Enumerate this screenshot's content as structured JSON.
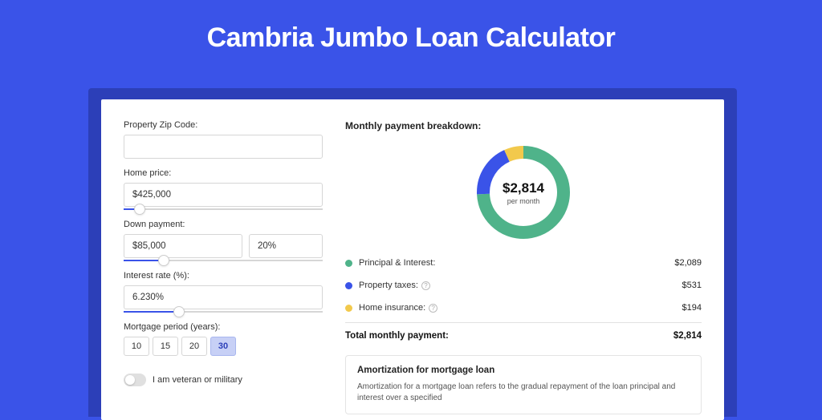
{
  "colors": {
    "page_bg": "#3a53e8",
    "shadow": "#2c3fb8",
    "card_bg": "#ffffff",
    "border": "#d6d6d6",
    "text_primary": "#222222",
    "text_secondary": "#555555",
    "slider_fill": "#3a53e8",
    "period_selected_bg": "#c7d0f6"
  },
  "hero": {
    "title": "Cambria Jumbo Loan Calculator"
  },
  "form": {
    "zip": {
      "label": "Property Zip Code:",
      "value": ""
    },
    "home_price": {
      "label": "Home price:",
      "value": "$425,000",
      "slider_pct": 8
    },
    "down_payment": {
      "label": "Down payment:",
      "amount": "$85,000",
      "percent": "20%",
      "slider_pct": 20
    },
    "interest": {
      "label": "Interest rate (%):",
      "value": "6.230%",
      "slider_pct": 28
    },
    "period": {
      "label": "Mortgage period (years):",
      "options": [
        "10",
        "15",
        "20",
        "30"
      ],
      "selected": "30"
    },
    "veteran": {
      "label": "I am veteran or military",
      "on": false
    }
  },
  "breakdown": {
    "title": "Monthly payment breakdown:",
    "donut": {
      "amount": "$2,814",
      "sub": "per month",
      "segments": [
        {
          "label": "Principal & Interest",
          "value": 2089,
          "color": "#4fb38a",
          "percent": 74.2
        },
        {
          "label": "Property taxes",
          "value": 531,
          "color": "#3a53e8",
          "percent": 18.9
        },
        {
          "label": "Home insurance",
          "value": 194,
          "color": "#f2c94c",
          "percent": 6.9
        }
      ],
      "stroke_width": 16,
      "radius": 50
    },
    "rows": [
      {
        "swatch": "#4fb38a",
        "label": "Principal & Interest:",
        "value": "$2,089",
        "has_info": false
      },
      {
        "swatch": "#3a53e8",
        "label": "Property taxes:",
        "value": "$531",
        "has_info": true
      },
      {
        "swatch": "#f2c94c",
        "label": "Home insurance:",
        "value": "$194",
        "has_info": true
      }
    ],
    "total": {
      "label": "Total monthly payment:",
      "value": "$2,814"
    }
  },
  "amortization": {
    "title": "Amortization for mortgage loan",
    "text": "Amortization for a mortgage loan refers to the gradual repayment of the loan principal and interest over a specified"
  }
}
